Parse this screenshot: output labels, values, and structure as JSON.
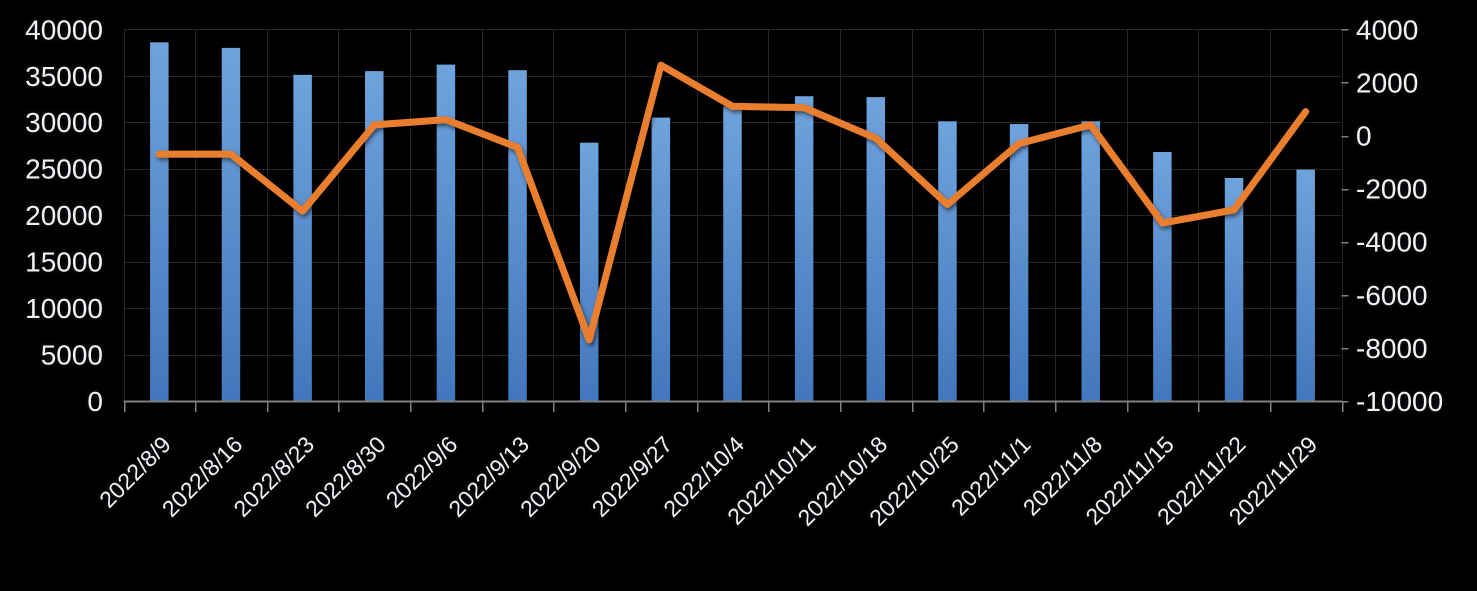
{
  "chart_data": {
    "type": "combo",
    "title": "",
    "legend": "none",
    "grid": true,
    "categories": [
      "2022/8/9",
      "2022/8/16",
      "2022/8/23",
      "2022/8/30",
      "2022/9/6",
      "2022/9/13",
      "2022/9/20",
      "2022/9/27",
      "2022/10/4",
      "2022/10/11",
      "2022/10/18",
      "2022/10/25",
      "2022/11/1",
      "2022/11/8",
      "2022/11/15",
      "2022/11/22",
      "2022/11/29"
    ],
    "series": [
      {
        "type": "bar",
        "axis": "left",
        "values": [
          38600,
          38000,
          35100,
          35500,
          36200,
          35600,
          27800,
          30500,
          31700,
          32800,
          32700,
          30100,
          29800,
          30100,
          26800,
          24000,
          24900
        ]
      },
      {
        "type": "line",
        "axis": "right",
        "values": [
          -700,
          -700,
          -2850,
          400,
          600,
          -450,
          -7700,
          2650,
          1100,
          1050,
          -100,
          -2600,
          -300,
          400,
          -3300,
          -2800,
          900
        ]
      }
    ],
    "left_axis": {
      "min": 0,
      "max": 40000,
      "step": 5000,
      "tick_labels": [
        "0",
        "5000",
        "10000",
        "15000",
        "20000",
        "25000",
        "30000",
        "35000",
        "40000"
      ]
    },
    "right_axis": {
      "min": -10000,
      "max": 4000,
      "step": 2000,
      "tick_labels": [
        "-10000",
        "-8000",
        "-6000",
        "-4000",
        "-2000",
        "0",
        "2000",
        "4000"
      ]
    }
  },
  "styles": {
    "background": "#000000",
    "gridline_color": "#262626",
    "axis_line_color": "#7f7f7f",
    "tick_color": "#7f7f7f",
    "label_color": "#f2f2f2",
    "bar_gradient_top": "#6FA3DC",
    "bar_gradient_bottom": "#4277BD",
    "line_color": "#E87E2F"
  }
}
